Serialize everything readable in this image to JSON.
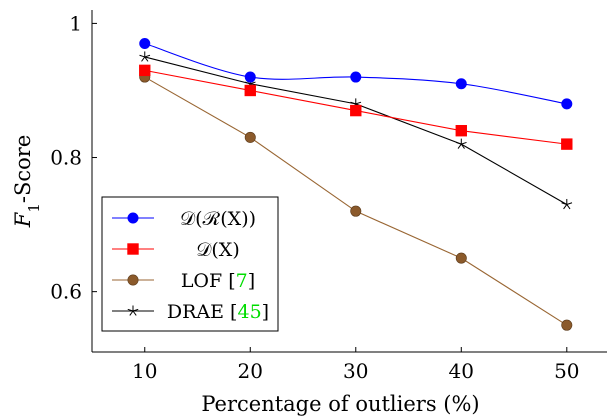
{
  "chart_data": {
    "type": "line",
    "xlabel": "Percentage of outliers (%)",
    "ylabel": "F1-Score",
    "x": [
      10,
      20,
      30,
      40,
      50
    ],
    "xlim": [
      5,
      54
    ],
    "ylim": [
      0.51,
      1.02
    ],
    "xticks": [
      "10",
      "20",
      "30",
      "40",
      "50"
    ],
    "yticks": [
      "0.6",
      "0.8",
      "1"
    ],
    "ytick_values": [
      0.6,
      0.8,
      1.0
    ],
    "grid": false,
    "legend_position": "bottom-left",
    "series": [
      {
        "name": "D(R(X))",
        "legend_label": "𝒟(ℛ(X))",
        "color": "#0000ff",
        "marker": "circle",
        "smooth": true,
        "values": [
          0.97,
          0.92,
          0.92,
          0.91,
          0.88
        ]
      },
      {
        "name": "D(X)",
        "legend_label": "𝒟(X)",
        "color": "#ff0000",
        "marker": "square",
        "smooth": false,
        "values": [
          0.93,
          0.9,
          0.87,
          0.84,
          0.82
        ]
      },
      {
        "name": "LOF [7]",
        "legend_label": "LOF [",
        "legend_ref": "7",
        "legend_suffix": "]",
        "color": "#996633",
        "marker": "circle-brown",
        "smooth": false,
        "values": [
          0.92,
          0.83,
          0.72,
          0.65,
          0.55
        ]
      },
      {
        "name": "DRAE [45]",
        "legend_label": "DRAE [",
        "legend_ref": "45",
        "legend_suffix": "]",
        "color": "#000000",
        "marker": "star",
        "smooth": false,
        "values": [
          0.95,
          0.91,
          0.88,
          0.82,
          0.73
        ]
      }
    ],
    "ref_color": "#00dd00"
  }
}
